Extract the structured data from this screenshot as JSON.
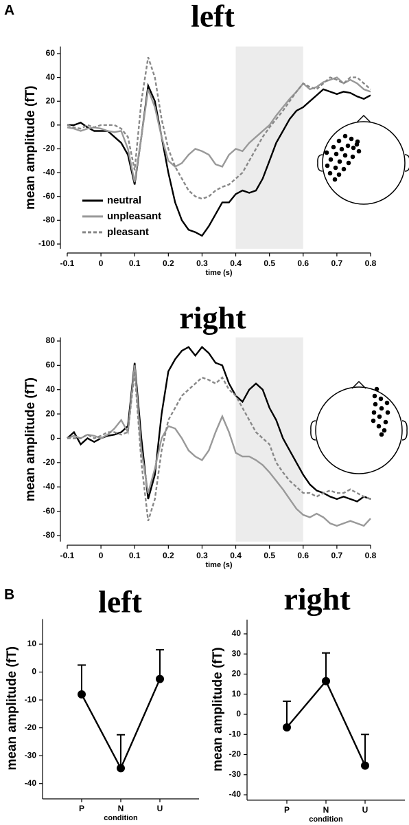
{
  "panel_labels": [
    "A",
    "B"
  ],
  "chart_data": [
    {
      "type": "line",
      "title": "left",
      "xlabel": "time (s)",
      "ylabel": "mean amplitude (fT)",
      "x": [
        -0.1,
        -0.08,
        -0.06,
        -0.04,
        -0.02,
        0,
        0.02,
        0.04,
        0.06,
        0.08,
        0.1,
        0.12,
        0.14,
        0.16,
        0.18,
        0.2,
        0.22,
        0.24,
        0.26,
        0.28,
        0.3,
        0.32,
        0.34,
        0.36,
        0.38,
        0.4,
        0.42,
        0.44,
        0.46,
        0.48,
        0.5,
        0.52,
        0.54,
        0.56,
        0.58,
        0.6,
        0.62,
        0.64,
        0.66,
        0.68,
        0.7,
        0.72,
        0.74,
        0.76,
        0.78,
        0.8
      ],
      "xlim": [
        -0.1,
        0.8
      ],
      "xticks": [
        -0.1,
        0,
        0.1,
        0.2,
        0.3,
        0.4,
        0.5,
        0.6,
        0.7,
        0.8
      ],
      "ylim": [
        -104,
        66
      ],
      "yticks": [
        60,
        40,
        20,
        0,
        -20,
        -40,
        -60,
        -80,
        -100
      ],
      "shaded_region": [
        0.4,
        0.6
      ],
      "legend": "lower left",
      "series": [
        {
          "name": "neutral",
          "color": "#000000",
          "line_style": "solid",
          "values": [
            0,
            0,
            2,
            -2,
            -5,
            -5,
            -5,
            -10,
            -15,
            -25,
            -50,
            -10,
            33,
            20,
            -10,
            -40,
            -65,
            -80,
            -88,
            -90,
            -93,
            -85,
            -75,
            -65,
            -65,
            -58,
            -55,
            -57,
            -55,
            -45,
            -30,
            -15,
            -5,
            5,
            12,
            15,
            20,
            25,
            30,
            28,
            26,
            28,
            27,
            24,
            22,
            25
          ]
        },
        {
          "name": "unpleasant",
          "color": "#999999",
          "line_style": "solid",
          "values": [
            -2,
            -3,
            -5,
            -3,
            -2,
            -3,
            -5,
            -6,
            -5,
            -20,
            -48,
            -10,
            30,
            15,
            -10,
            -30,
            -35,
            -32,
            -25,
            -20,
            -22,
            -25,
            -33,
            -35,
            -25,
            -20,
            -22,
            -15,
            -10,
            -5,
            0,
            8,
            15,
            22,
            28,
            35,
            30,
            32,
            36,
            38,
            40,
            35,
            38,
            35,
            30,
            28
          ]
        },
        {
          "name": "pleasant",
          "color": "#888888",
          "line_style": "dashed",
          "values": [
            0,
            -2,
            -3,
            0,
            -2,
            0,
            0,
            0,
            -3,
            -10,
            -38,
            20,
            57,
            40,
            5,
            -20,
            -35,
            -45,
            -55,
            -60,
            -62,
            -60,
            -55,
            -52,
            -50,
            -45,
            -40,
            -30,
            -20,
            -10,
            -2,
            5,
            12,
            20,
            28,
            35,
            32,
            30,
            35,
            40,
            38,
            35,
            40,
            40,
            35,
            30
          ]
        }
      ]
    },
    {
      "type": "line",
      "title": "right",
      "xlabel": "time (s)",
      "ylabel": "mean amplitude (fT)",
      "x": [
        -0.1,
        -0.08,
        -0.06,
        -0.04,
        -0.02,
        0,
        0.02,
        0.04,
        0.06,
        0.08,
        0.1,
        0.12,
        0.14,
        0.16,
        0.18,
        0.2,
        0.22,
        0.24,
        0.26,
        0.28,
        0.3,
        0.32,
        0.34,
        0.36,
        0.38,
        0.4,
        0.42,
        0.44,
        0.46,
        0.48,
        0.5,
        0.52,
        0.54,
        0.56,
        0.58,
        0.6,
        0.62,
        0.64,
        0.66,
        0.68,
        0.7,
        0.72,
        0.74,
        0.76,
        0.78,
        0.8
      ],
      "xlim": [
        -0.1,
        0.8
      ],
      "xticks": [
        -0.1,
        0,
        0.1,
        0.2,
        0.3,
        0.4,
        0.5,
        0.6,
        0.7,
        0.8
      ],
      "ylim": [
        -85,
        83
      ],
      "yticks": [
        80,
        60,
        40,
        20,
        0,
        -20,
        -40,
        -60,
        -80
      ],
      "shaded_region": [
        0.4,
        0.6
      ],
      "series": [
        {
          "color": "#000000",
          "line_style": "solid",
          "values": [
            0,
            5,
            -5,
            0,
            -3,
            0,
            2,
            3,
            5,
            10,
            62,
            0,
            -50,
            -30,
            20,
            55,
            65,
            72,
            75,
            68,
            75,
            70,
            62,
            60,
            45,
            35,
            30,
            40,
            45,
            40,
            25,
            15,
            0,
            -10,
            -20,
            -30,
            -38,
            -43,
            -45,
            -48,
            -50,
            -48,
            -50,
            -52,
            -48,
            -50
          ]
        },
        {
          "color": "#999999",
          "line_style": "solid",
          "values": [
            0,
            2,
            0,
            3,
            2,
            0,
            3,
            8,
            15,
            5,
            60,
            -10,
            -45,
            -25,
            0,
            10,
            8,
            0,
            -10,
            -15,
            -18,
            -10,
            5,
            18,
            5,
            -12,
            -15,
            -15,
            -18,
            -22,
            -28,
            -35,
            -42,
            -50,
            -58,
            -63,
            -65,
            -62,
            -65,
            -70,
            -72,
            -70,
            -68,
            -70,
            -72,
            -66
          ]
        },
        {
          "color": "#888888",
          "line_style": "dashed",
          "values": [
            0,
            0,
            0,
            3,
            0,
            2,
            5,
            5,
            3,
            5,
            55,
            -20,
            -68,
            -50,
            -10,
            15,
            25,
            35,
            40,
            45,
            50,
            48,
            45,
            50,
            40,
            35,
            25,
            15,
            5,
            0,
            -5,
            -20,
            -28,
            -35,
            -40,
            -45,
            -45,
            -48,
            -45,
            -43,
            -45,
            -45,
            -42,
            -45,
            -48,
            -50
          ]
        }
      ]
    },
    {
      "type": "errorbar",
      "title": "left",
      "xlabel": "condition",
      "ylabel": "mean amplitude (fT)",
      "categories": [
        "P",
        "N",
        "U"
      ],
      "values": [
        -8,
        -34.5,
        -2.5
      ],
      "errors": [
        10.5,
        12,
        10.5
      ],
      "color": "#000000",
      "ylim": [
        -45,
        19
      ],
      "yticks": [
        10,
        0,
        -10,
        -20,
        -30,
        -40
      ]
    },
    {
      "type": "errorbar",
      "title": "right",
      "xlabel": "condition",
      "ylabel": "mean amplitude (fT)",
      "categories": [
        "P",
        "N",
        "U"
      ],
      "values": [
        -6.5,
        16.5,
        -25.5
      ],
      "errors": [
        13,
        14,
        15.5
      ],
      "color": "#000000",
      "ylim": [
        -42,
        47
      ],
      "yticks": [
        40,
        30,
        20,
        10,
        0,
        -10,
        -20,
        -30,
        -40
      ]
    }
  ]
}
